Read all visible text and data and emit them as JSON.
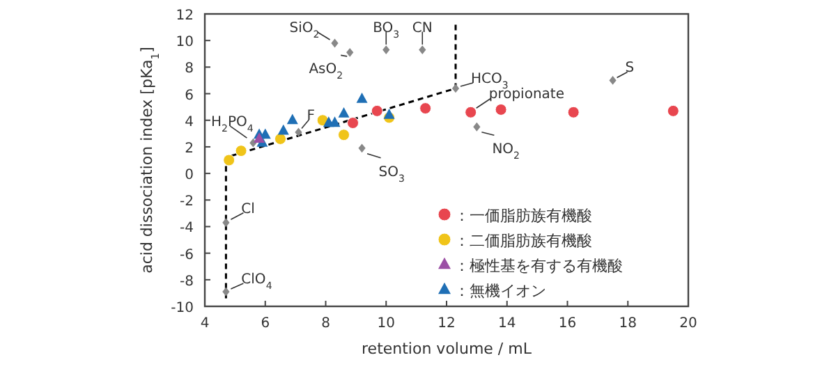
{
  "chart_data": {
    "type": "scatter",
    "xlabel": "retention volume / mL",
    "ylabel": "acid dissociation index [pKa$_{1}$]",
    "xlim": [
      4,
      20
    ],
    "xticks": [
      4,
      6,
      8,
      10,
      12,
      14,
      16,
      18,
      20
    ],
    "ylim": [
      -10,
      12
    ],
    "yticks": [
      -10,
      -8,
      -6,
      -4,
      -2,
      0,
      2,
      4,
      6,
      8,
      10,
      12
    ],
    "grid": false,
    "legend": "bottom right",
    "series": [
      {
        "type": "line",
        "line_style": "dashed",
        "marker": "none",
        "color": "#000000",
        "x": [
          4.7,
          4.7,
          12.3,
          12.3
        ],
        "values": [
          -9.4,
          1.2,
          6.4,
          11.3
        ]
      },
      {
        "marker": "diamond",
        "color": "#888888",
        "x": [
          8.3,
          8.8,
          10.0,
          11.2,
          12.3,
          7.1,
          5.6,
          9.2,
          13.0,
          17.5,
          4.7,
          4.7
        ],
        "values": [
          9.8,
          9.1,
          9.3,
          9.3,
          6.4,
          3.1,
          2.3,
          1.9,
          3.5,
          7.0,
          -3.7,
          -8.9
        ]
      },
      {
        "name": "：一価脂肪族有機酸",
        "marker": "circle",
        "color": "#e8464f",
        "x": [
          8.9,
          9.7,
          11.3,
          12.8,
          13.8,
          16.2,
          19.5
        ],
        "values": [
          3.8,
          4.7,
          4.9,
          4.6,
          4.8,
          4.6,
          4.7
        ]
      },
      {
        "name": "：二価脂肪族有機酸",
        "marker": "circle",
        "color": "#f0c419",
        "x": [
          4.8,
          5.2,
          6.5,
          7.9,
          8.6,
          10.1
        ],
        "values": [
          1.0,
          1.7,
          2.6,
          4.0,
          2.9,
          4.2
        ]
      },
      {
        "name": "：極性基を有する有機酸",
        "marker": "triangle",
        "color": "#9b4fa5",
        "x": [
          5.8
        ],
        "values": [
          2.6
        ]
      },
      {
        "name": "：無機イオン",
        "marker": "triangle",
        "color": "#1f6fb5",
        "x": [
          5.8,
          6.0,
          5.9,
          6.6,
          6.9,
          8.1,
          8.3,
          8.6,
          9.2,
          10.1
        ],
        "values": [
          2.9,
          2.9,
          2.3,
          3.2,
          4.0,
          3.8,
          3.8,
          4.5,
          5.6,
          4.4
        ]
      }
    ],
    "annotations": [
      {
        "text": "SiO$_{2}$",
        "x": 8.3,
        "y": 9.8
      },
      {
        "text": "AsO$_{2}$",
        "x": 8.8,
        "y": 9.1
      },
      {
        "text": "BO$_{3}$",
        "x": 10.0,
        "y": 9.3
      },
      {
        "text": "CN",
        "x": 11.2,
        "y": 9.3
      },
      {
        "text": "HCO$_{3}$",
        "x": 12.3,
        "y": 6.4
      },
      {
        "text": "propionate",
        "x": 12.8,
        "y": 4.6
      },
      {
        "text": "S",
        "x": 17.5,
        "y": 7.0
      },
      {
        "text": "NO$_{2}$",
        "x": 13.0,
        "y": 3.5
      },
      {
        "text": "SO$_{3}$",
        "x": 9.2,
        "y": 1.9
      },
      {
        "text": "F",
        "x": 7.1,
        "y": 3.1
      },
      {
        "text": "H$_{2}$PO$_{4}$",
        "x": 5.6,
        "y": 2.3
      },
      {
        "text": "Cl",
        "x": 4.7,
        "y": -3.7
      },
      {
        "text": "ClO$_{4}$",
        "x": 4.7,
        "y": -8.9
      }
    ]
  }
}
